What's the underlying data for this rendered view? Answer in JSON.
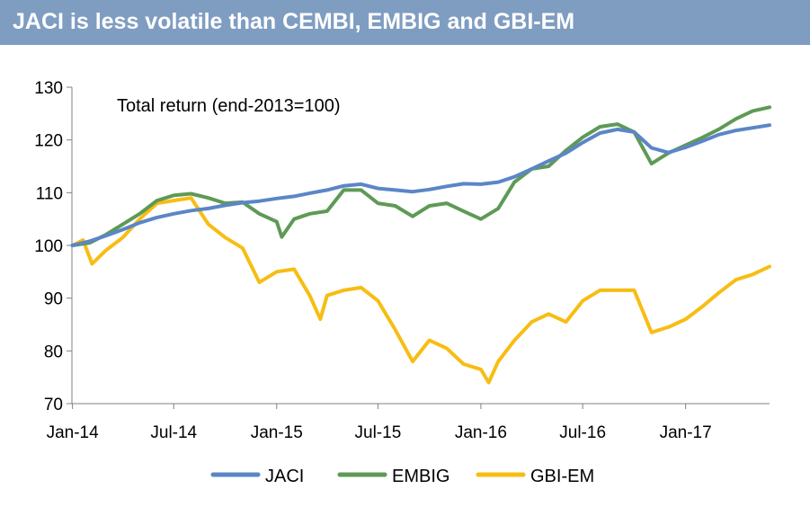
{
  "header": {
    "title": "JACI is less volatile than CEMBI, EMBIG and GBI-EM"
  },
  "chart_data": {
    "type": "line",
    "title": "",
    "annotation": "Total return (end-2013=100)",
    "xlabel": "",
    "ylabel": "",
    "ylim": [
      70,
      130
    ],
    "yticks": [
      70,
      80,
      90,
      100,
      110,
      120,
      130
    ],
    "x_range": [
      "2013-12-31",
      "2017-05-31"
    ],
    "xticks": [
      {
        "date": "2014-01-01",
        "label": "Jan-14"
      },
      {
        "date": "2014-07-01",
        "label": "Jul-14"
      },
      {
        "date": "2015-01-01",
        "label": "Jan-15"
      },
      {
        "date": "2015-07-01",
        "label": "Jul-15"
      },
      {
        "date": "2016-01-01",
        "label": "Jan-16"
      },
      {
        "date": "2016-07-01",
        "label": "Jul-16"
      },
      {
        "date": "2017-01-01",
        "label": "Jan-17"
      }
    ],
    "grid": false,
    "legend_position": "bottom",
    "series": [
      {
        "name": "JACI",
        "color": "#5b86c6",
        "points": [
          [
            "2014-01-01",
            100.0
          ],
          [
            "2014-02-01",
            100.8
          ],
          [
            "2014-03-01",
            101.8
          ],
          [
            "2014-04-01",
            103.0
          ],
          [
            "2014-05-01",
            104.3
          ],
          [
            "2014-06-01",
            105.3
          ],
          [
            "2014-07-01",
            106.0
          ],
          [
            "2014-08-01",
            106.6
          ],
          [
            "2014-09-01",
            107.0
          ],
          [
            "2014-10-01",
            107.6
          ],
          [
            "2014-11-01",
            108.1
          ],
          [
            "2014-12-01",
            108.4
          ],
          [
            "2015-01-01",
            108.9
          ],
          [
            "2015-02-01",
            109.3
          ],
          [
            "2015-03-01",
            109.9
          ],
          [
            "2015-04-01",
            110.5
          ],
          [
            "2015-05-01",
            111.3
          ],
          [
            "2015-06-01",
            111.6
          ],
          [
            "2015-07-01",
            110.8
          ],
          [
            "2015-08-01",
            110.5
          ],
          [
            "2015-09-01",
            110.2
          ],
          [
            "2015-10-01",
            110.6
          ],
          [
            "2015-11-01",
            111.2
          ],
          [
            "2015-12-01",
            111.7
          ],
          [
            "2016-01-01",
            111.6
          ],
          [
            "2016-02-01",
            112.0
          ],
          [
            "2016-03-01",
            113.0
          ],
          [
            "2016-04-01",
            114.5
          ],
          [
            "2016-05-01",
            116.0
          ],
          [
            "2016-06-01",
            117.5
          ],
          [
            "2016-07-01",
            119.5
          ],
          [
            "2016-08-01",
            121.3
          ],
          [
            "2016-09-01",
            122.0
          ],
          [
            "2016-10-01",
            121.5
          ],
          [
            "2016-11-01",
            118.5
          ],
          [
            "2016-12-01",
            117.6
          ],
          [
            "2017-01-01",
            118.6
          ],
          [
            "2017-02-01",
            119.8
          ],
          [
            "2017-03-01",
            121.0
          ],
          [
            "2017-04-01",
            121.8
          ],
          [
            "2017-05-01",
            122.3
          ],
          [
            "2017-05-31",
            122.8
          ]
        ]
      },
      {
        "name": "EMBIG",
        "color": "#5e9a56",
        "points": [
          [
            "2014-01-01",
            100.0
          ],
          [
            "2014-02-01",
            100.5
          ],
          [
            "2014-03-01",
            102.0
          ],
          [
            "2014-04-01",
            104.0
          ],
          [
            "2014-05-01",
            106.0
          ],
          [
            "2014-06-01",
            108.5
          ],
          [
            "2014-07-01",
            109.5
          ],
          [
            "2014-08-01",
            109.8
          ],
          [
            "2014-09-01",
            109.0
          ],
          [
            "2014-10-01",
            108.0
          ],
          [
            "2014-11-01",
            108.2
          ],
          [
            "2014-12-01",
            106.0
          ],
          [
            "2015-01-01",
            104.5
          ],
          [
            "2015-01-10",
            101.6
          ],
          [
            "2015-02-01",
            105.0
          ],
          [
            "2015-03-01",
            106.0
          ],
          [
            "2015-04-01",
            106.5
          ],
          [
            "2015-05-01",
            110.5
          ],
          [
            "2015-06-01",
            110.5
          ],
          [
            "2015-07-01",
            108.0
          ],
          [
            "2015-08-01",
            107.5
          ],
          [
            "2015-09-01",
            105.5
          ],
          [
            "2015-10-01",
            107.5
          ],
          [
            "2015-11-01",
            108.0
          ],
          [
            "2015-12-01",
            106.5
          ],
          [
            "2016-01-01",
            105.0
          ],
          [
            "2016-02-01",
            107.0
          ],
          [
            "2016-03-01",
            112.0
          ],
          [
            "2016-04-01",
            114.5
          ],
          [
            "2016-05-01",
            115.0
          ],
          [
            "2016-06-01",
            118.0
          ],
          [
            "2016-07-01",
            120.5
          ],
          [
            "2016-08-01",
            122.5
          ],
          [
            "2016-09-01",
            123.0
          ],
          [
            "2016-10-01",
            121.5
          ],
          [
            "2016-11-01",
            115.5
          ],
          [
            "2016-12-01",
            117.5
          ],
          [
            "2017-01-01",
            119.0
          ],
          [
            "2017-02-01",
            120.5
          ],
          [
            "2017-03-01",
            122.0
          ],
          [
            "2017-04-01",
            124.0
          ],
          [
            "2017-05-01",
            125.5
          ],
          [
            "2017-05-31",
            126.2
          ]
        ]
      },
      {
        "name": "GBI-EM",
        "color": "#f7bd13",
        "points": [
          [
            "2014-01-01",
            100.0
          ],
          [
            "2014-01-20",
            101.0
          ],
          [
            "2014-02-05",
            96.5
          ],
          [
            "2014-03-01",
            99.0
          ],
          [
            "2014-04-01",
            101.5
          ],
          [
            "2014-05-01",
            105.0
          ],
          [
            "2014-06-01",
            108.0
          ],
          [
            "2014-07-01",
            108.5
          ],
          [
            "2014-08-01",
            109.0
          ],
          [
            "2014-09-01",
            104.0
          ],
          [
            "2014-10-01",
            101.5
          ],
          [
            "2014-11-01",
            99.5
          ],
          [
            "2014-12-01",
            93.0
          ],
          [
            "2015-01-01",
            95.0
          ],
          [
            "2015-02-01",
            95.5
          ],
          [
            "2015-03-01",
            90.5
          ],
          [
            "2015-03-20",
            86.0
          ],
          [
            "2015-04-01",
            90.5
          ],
          [
            "2015-05-01",
            91.5
          ],
          [
            "2015-06-01",
            92.0
          ],
          [
            "2015-07-01",
            89.5
          ],
          [
            "2015-08-01",
            84.0
          ],
          [
            "2015-09-01",
            78.0
          ],
          [
            "2015-10-01",
            82.0
          ],
          [
            "2015-11-01",
            80.5
          ],
          [
            "2015-12-01",
            77.5
          ],
          [
            "2016-01-01",
            76.5
          ],
          [
            "2016-01-15",
            74.0
          ],
          [
            "2016-02-01",
            78.0
          ],
          [
            "2016-03-01",
            82.0
          ],
          [
            "2016-04-01",
            85.5
          ],
          [
            "2016-05-01",
            87.0
          ],
          [
            "2016-06-01",
            85.5
          ],
          [
            "2016-07-01",
            89.5
          ],
          [
            "2016-08-01",
            91.5
          ],
          [
            "2016-09-01",
            91.5
          ],
          [
            "2016-10-01",
            91.5
          ],
          [
            "2016-11-01",
            83.5
          ],
          [
            "2016-12-01",
            84.5
          ],
          [
            "2017-01-01",
            86.0
          ],
          [
            "2017-02-01",
            88.5
          ],
          [
            "2017-03-01",
            91.0
          ],
          [
            "2017-04-01",
            93.5
          ],
          [
            "2017-05-01",
            94.5
          ],
          [
            "2017-05-31",
            96.0
          ]
        ]
      }
    ]
  }
}
